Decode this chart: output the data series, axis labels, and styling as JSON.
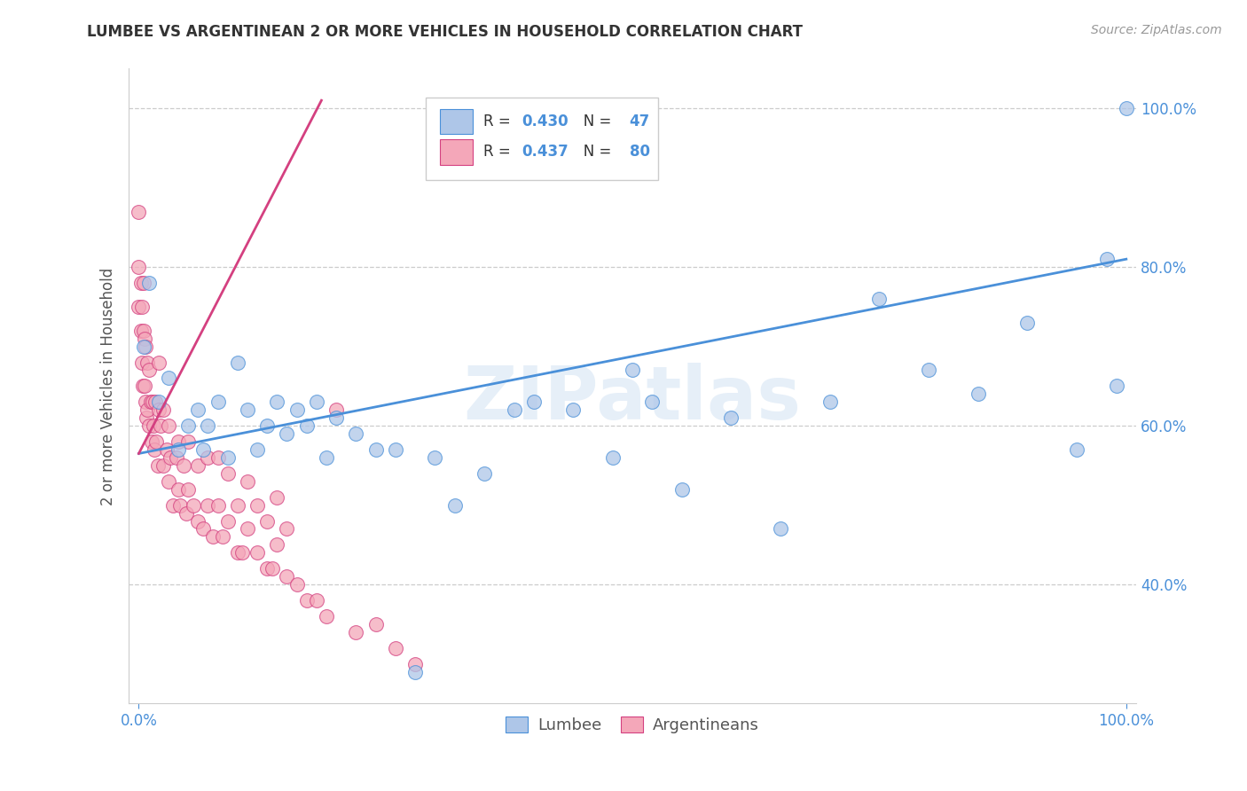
{
  "title": "LUMBEE VS ARGENTINEAN 2 OR MORE VEHICLES IN HOUSEHOLD CORRELATION CHART",
  "source": "Source: ZipAtlas.com",
  "ylabel": "2 or more Vehicles in Household",
  "watermark": "ZIPatlas",
  "lumbee_R": 0.43,
  "lumbee_N": 47,
  "argentinean_R": 0.437,
  "argentinean_N": 80,
  "xlim": [
    -0.01,
    1.01
  ],
  "ylim": [
    0.25,
    1.05
  ],
  "ytick_positions": [
    0.4,
    0.6,
    0.8,
    1.0
  ],
  "yticklabels": [
    "40.0%",
    "60.0%",
    "80.0%",
    "100.0%"
  ],
  "lumbee_color": "#aec6e8",
  "argentinean_color": "#f4a7b9",
  "lumbee_line_color": "#4a90d9",
  "argentinean_line_color": "#d44080",
  "lumbee_line_x": [
    0.0,
    1.0
  ],
  "lumbee_line_y": [
    0.565,
    0.81
  ],
  "argentinean_line_x": [
    0.0,
    0.185
  ],
  "argentinean_line_y": [
    0.565,
    1.01
  ],
  "lumbee_x": [
    0.005,
    0.01,
    0.02,
    0.03,
    0.04,
    0.05,
    0.06,
    0.065,
    0.07,
    0.08,
    0.09,
    0.1,
    0.11,
    0.12,
    0.13,
    0.14,
    0.15,
    0.16,
    0.17,
    0.18,
    0.19,
    0.2,
    0.22,
    0.24,
    0.26,
    0.28,
    0.3,
    0.32,
    0.35,
    0.38,
    0.4,
    0.44,
    0.48,
    0.5,
    0.52,
    0.55,
    0.6,
    0.65,
    0.7,
    0.75,
    0.8,
    0.85,
    0.9,
    0.95,
    0.98,
    0.99,
    1.0
  ],
  "lumbee_y": [
    0.7,
    0.78,
    0.63,
    0.66,
    0.57,
    0.6,
    0.62,
    0.57,
    0.6,
    0.63,
    0.56,
    0.68,
    0.62,
    0.57,
    0.6,
    0.63,
    0.59,
    0.62,
    0.6,
    0.63,
    0.56,
    0.61,
    0.59,
    0.57,
    0.57,
    0.29,
    0.56,
    0.5,
    0.54,
    0.62,
    0.63,
    0.62,
    0.56,
    0.67,
    0.63,
    0.52,
    0.61,
    0.47,
    0.63,
    0.76,
    0.67,
    0.64,
    0.73,
    0.57,
    0.81,
    0.65,
    1.0
  ],
  "argentinean_x": [
    0.0,
    0.0,
    0.0,
    0.002,
    0.002,
    0.003,
    0.003,
    0.004,
    0.005,
    0.005,
    0.006,
    0.006,
    0.007,
    0.007,
    0.008,
    0.009,
    0.009,
    0.01,
    0.01,
    0.012,
    0.013,
    0.014,
    0.015,
    0.016,
    0.017,
    0.018,
    0.019,
    0.02,
    0.02,
    0.022,
    0.025,
    0.025,
    0.028,
    0.03,
    0.03,
    0.032,
    0.035,
    0.038,
    0.04,
    0.04,
    0.042,
    0.045,
    0.048,
    0.05,
    0.05,
    0.055,
    0.06,
    0.06,
    0.065,
    0.07,
    0.07,
    0.075,
    0.08,
    0.08,
    0.085,
    0.09,
    0.09,
    0.1,
    0.1,
    0.105,
    0.11,
    0.11,
    0.12,
    0.12,
    0.13,
    0.13,
    0.135,
    0.14,
    0.14,
    0.15,
    0.15,
    0.16,
    0.17,
    0.18,
    0.19,
    0.2,
    0.22,
    0.24,
    0.26,
    0.28
  ],
  "argentinean_y": [
    0.75,
    0.8,
    0.87,
    0.72,
    0.78,
    0.68,
    0.75,
    0.65,
    0.72,
    0.78,
    0.65,
    0.71,
    0.63,
    0.7,
    0.61,
    0.62,
    0.68,
    0.6,
    0.67,
    0.63,
    0.58,
    0.63,
    0.6,
    0.57,
    0.63,
    0.58,
    0.55,
    0.62,
    0.68,
    0.6,
    0.55,
    0.62,
    0.57,
    0.53,
    0.6,
    0.56,
    0.5,
    0.56,
    0.52,
    0.58,
    0.5,
    0.55,
    0.49,
    0.52,
    0.58,
    0.5,
    0.48,
    0.55,
    0.47,
    0.5,
    0.56,
    0.46,
    0.5,
    0.56,
    0.46,
    0.48,
    0.54,
    0.44,
    0.5,
    0.44,
    0.47,
    0.53,
    0.44,
    0.5,
    0.42,
    0.48,
    0.42,
    0.45,
    0.51,
    0.41,
    0.47,
    0.4,
    0.38,
    0.38,
    0.36,
    0.62,
    0.34,
    0.35,
    0.32,
    0.3
  ]
}
